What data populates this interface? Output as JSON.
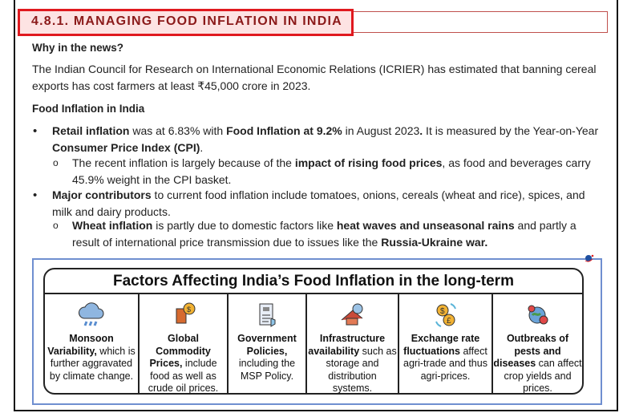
{
  "heading": "4.8.1. MANAGING FOOD INFLATION IN INDIA",
  "why_title": "Why in the news?",
  "why_text": "The Indian Council for Research on International Economic Relations (ICRIER) has estimated that banning cereal exports has cost farmers at least ₹45,000 crore in 2023.",
  "food_title": "Food Inflation in India",
  "bullets": [
    {
      "parts": [
        [
          "Retail inflation",
          true
        ],
        [
          " was at 6.83% with ",
          false
        ],
        [
          "Food Inflation at 9.2%",
          true
        ],
        [
          " in August 2023",
          false
        ],
        [
          ".",
          true
        ],
        [
          " It is measured by the Year-on-Year ",
          false
        ],
        [
          "Consumer Price Index (CPI)",
          true
        ],
        [
          ".",
          false
        ]
      ]
    },
    {
      "parts": [
        [
          "The recent inflation is largely because of the ",
          false
        ],
        [
          "impact of rising food prices",
          true
        ],
        [
          ", as food and beverages carry 45.9% weight in the CPI basket.",
          false
        ]
      ]
    },
    {
      "parts": [
        [
          "Major contributors",
          true
        ],
        [
          " to current food inflation include tomatoes, onions, cereals (wheat and rice), spices, and milk and dairy products.",
          false
        ]
      ]
    },
    {
      "parts": [
        [
          "Wheat inflation",
          true
        ],
        [
          " is partly due to domestic factors like ",
          false
        ],
        [
          "heat waves and unseasonal rains",
          true
        ],
        [
          " and partly a result of international price transmission due to issues like the ",
          false
        ],
        [
          "Russia-Ukraine war.",
          true
        ]
      ]
    }
  ],
  "infographic": {
    "title": "Factors Affecting India’s Food Inflation in the long-term",
    "factors": [
      {
        "icon": "cloud-rain-icon",
        "bold": "Monsoon Variability,",
        "text": " which is further aggravated by climate change."
      },
      {
        "icon": "commodity-coin-icon",
        "bold": "Global Commodity Prices,",
        "text": " include food as well as crude oil prices."
      },
      {
        "icon": "policy-document-icon",
        "bold": "Government Policies,",
        "text": " including the MSP Policy."
      },
      {
        "icon": "warehouse-roof-icon",
        "bold": "Infrastructure availability",
        "text": " such as storage and distribution systems."
      },
      {
        "icon": "currency-exchange-icon",
        "bold": "Exchange rate fluctuations",
        "text": " affect agri-trade and thus agri-prices."
      },
      {
        "icon": "pest-virus-icon",
        "bold": "Outbreaks of pests and diseases",
        "text": " can affect crop yields and prices."
      }
    ]
  }
}
